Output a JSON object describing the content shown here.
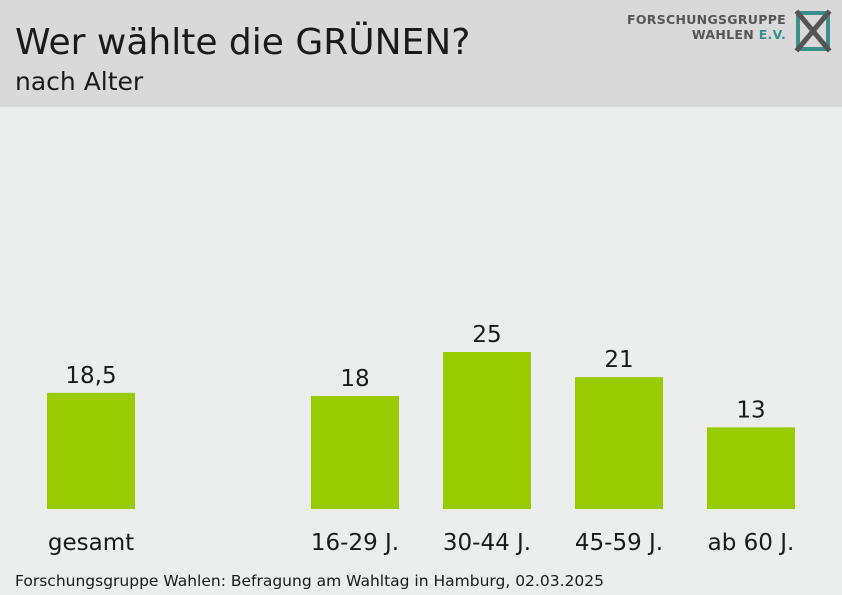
{
  "header": {
    "title": "Wer wählte die GRÜNEN?",
    "subtitle": "nach Alter"
  },
  "logo": {
    "line1": "FORSCHUNGSGRUPPE",
    "line2a": "WAHLEN ",
    "line2b": "E.V."
  },
  "source": "Forschungsgruppe Wahlen: Befragung am Wahltag in Hamburg, 02.03.2025",
  "colors": {
    "bar": "#99cc00",
    "header_bg": "#d9d9d9",
    "page_bg": "#ebeeec",
    "text": "#1a1a1a"
  },
  "chart_data": {
    "type": "bar",
    "categories": [
      "gesamt",
      "16-29 J.",
      "30-44 J.",
      "45-59 J.",
      "ab 60 J."
    ],
    "values": [
      18.5,
      18,
      25,
      21,
      13
    ],
    "value_labels": [
      "18,5",
      "18",
      "25",
      "21",
      "13"
    ],
    "grid": false,
    "legend": "none"
  }
}
